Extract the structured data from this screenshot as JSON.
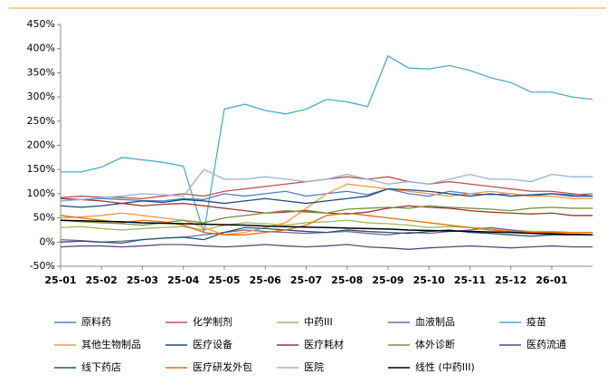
{
  "chart_data": {
    "type": "line",
    "categories": [
      "25-01",
      null,
      "25-02",
      null,
      "25-03",
      null,
      "25-04",
      null,
      "25-05",
      null,
      "25-06",
      null,
      "25-07",
      null,
      "25-08",
      null,
      "25-09",
      null,
      "25-10",
      null,
      "25-11",
      null,
      "25-12",
      null,
      "26-01",
      null,
      null
    ],
    "ylim": [
      -50,
      450
    ],
    "yticks": [
      {
        "value": -50,
        "label": "-50%"
      },
      {
        "value": 0,
        "label": "0%"
      },
      {
        "value": 50,
        "label": "50%"
      },
      {
        "value": 100,
        "label": "100%"
      },
      {
        "value": 150,
        "label": "150%"
      },
      {
        "value": 200,
        "label": "200%"
      },
      {
        "value": 250,
        "label": "250%"
      },
      {
        "value": 300,
        "label": "300%"
      },
      {
        "value": 350,
        "label": "350%"
      },
      {
        "value": 400,
        "label": "400%"
      },
      {
        "value": 450,
        "label": "450%"
      }
    ],
    "series": [
      {
        "name": "原料药",
        "color": "#4f81bd",
        "values": [
          85,
          88,
          90,
          88,
          86,
          85,
          90,
          88,
          100,
          95,
          100,
          105,
          95,
          100,
          105,
          98,
          110,
          100,
          95,
          105,
          100,
          98,
          100,
          95,
          100,
          98,
          100
        ]
      },
      {
        "name": "化学制剂",
        "color": "#c0504d",
        "values": [
          92,
          95,
          93,
          92,
          90,
          95,
          100,
          95,
          105,
          110,
          115,
          120,
          125,
          130,
          135,
          130,
          135,
          125,
          120,
          125,
          120,
          115,
          110,
          105,
          105,
          100,
          95
        ]
      },
      {
        "name": "中药III",
        "color": "#9bbb59",
        "values": [
          30,
          32,
          28,
          25,
          28,
          30,
          32,
          25,
          35,
          40,
          38,
          35,
          40,
          42,
          45,
          40,
          38,
          35,
          30,
          32,
          30,
          28,
          25,
          22,
          22,
          20,
          20
        ]
      },
      {
        "name": "血液制品",
        "color": "#8064a2",
        "values": [
          5,
          3,
          0,
          2,
          5,
          8,
          10,
          15,
          20,
          25,
          22,
          20,
          18,
          20,
          22,
          18,
          15,
          20,
          18,
          22,
          25,
          30,
          25,
          20,
          18,
          15,
          15
        ]
      },
      {
        "name": "疫苗",
        "color": "#4bacc6",
        "values": [
          145,
          145,
          155,
          175,
          170,
          165,
          157,
          20,
          275,
          285,
          272,
          265,
          275,
          295,
          290,
          280,
          385,
          360,
          358,
          365,
          355,
          340,
          330,
          310,
          310,
          300,
          295
        ]
      },
      {
        "name": "其他生物制品",
        "color": "#f79646",
        "values": [
          50,
          52,
          55,
          60,
          55,
          50,
          45,
          30,
          15,
          20,
          30,
          40,
          70,
          100,
          120,
          115,
          110,
          105,
          100,
          95,
          100,
          105,
          100,
          95,
          95,
          90,
          90
        ]
      },
      {
        "name": "医疗设备",
        "color": "#1f497d",
        "values": [
          75,
          72,
          75,
          80,
          85,
          82,
          88,
          85,
          80,
          85,
          90,
          85,
          80,
          85,
          90,
          95,
          110,
          108,
          105,
          100,
          95,
          100,
          95,
          98,
          100,
          95,
          95
        ]
      },
      {
        "name": "医疗耗材",
        "color": "#953735",
        "values": [
          90,
          88,
          85,
          80,
          75,
          78,
          80,
          75,
          70,
          65,
          60,
          62,
          65,
          60,
          58,
          62,
          70,
          75,
          72,
          70,
          65,
          62,
          60,
          58,
          60,
          55,
          55
        ]
      },
      {
        "name": "体外诊断",
        "color": "#77933c",
        "values": [
          45,
          42,
          40,
          38,
          35,
          40,
          45,
          40,
          50,
          55,
          60,
          65,
          62,
          60,
          68,
          70,
          72,
          70,
          75,
          72,
          70,
          68,
          65,
          70,
          72,
          70,
          70
        ]
      },
      {
        "name": "医药流通",
        "color": "#5f497a",
        "values": [
          -10,
          -8,
          -8,
          -10,
          -8,
          -5,
          -5,
          -8,
          -10,
          -8,
          -5,
          -8,
          -10,
          -8,
          -5,
          -10,
          -12,
          -15,
          -12,
          -10,
          -8,
          -10,
          -12,
          -10,
          -8,
          -10,
          -10
        ]
      },
      {
        "name": "线下药店",
        "color": "#215968",
        "values": [
          0,
          2,
          0,
          -2,
          5,
          8,
          10,
          5,
          20,
          30,
          28,
          25,
          22,
          20,
          25,
          22,
          20,
          18,
          22,
          25,
          20,
          18,
          15,
          12,
          15,
          15,
          15
        ]
      },
      {
        "name": "医疗研发外包",
        "color": "#e46c0a",
        "values": [
          55,
          50,
          45,
          40,
          45,
          42,
          35,
          20,
          15,
          15,
          20,
          25,
          35,
          55,
          60,
          55,
          50,
          45,
          40,
          35,
          30,
          25,
          22,
          20,
          20,
          20,
          20
        ]
      },
      {
        "name": "医院",
        "color": "#95b3d7",
        "values": [
          85,
          88,
          92,
          95,
          100,
          98,
          95,
          150,
          130,
          130,
          135,
          130,
          125,
          130,
          140,
          130,
          120,
          125,
          120,
          130,
          140,
          130,
          130,
          125,
          140,
          135,
          135
        ]
      },
      {
        "name": "线性 (中药III)",
        "color": "#000000",
        "values": [
          45,
          44,
          43,
          42,
          40,
          39,
          38,
          37,
          36,
          35,
          33,
          32,
          31,
          30,
          29,
          28,
          27,
          25,
          24,
          23,
          22,
          21,
          20,
          18,
          17,
          16,
          15
        ]
      }
    ]
  }
}
